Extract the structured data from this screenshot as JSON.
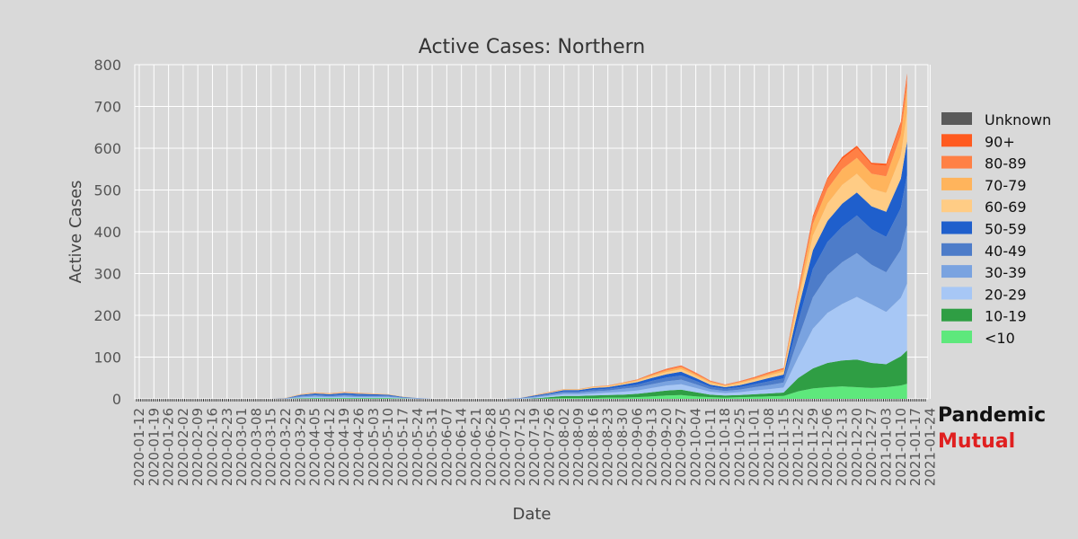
{
  "chart_data": {
    "type": "area",
    "stacked": true,
    "title": "Active Cases: Northern",
    "xlabel": "Date",
    "ylabel": "Active Cases",
    "ylim": [
      0,
      800
    ],
    "yticks": [
      0,
      100,
      200,
      300,
      400,
      500,
      600,
      700,
      800
    ],
    "grid": true,
    "legend_position": "right",
    "x_tick_labels": [
      "2020-01-12",
      "2020-01-19",
      "2020-01-26",
      "2020-02-02",
      "2020-02-09",
      "2020-02-16",
      "2020-02-23",
      "2020-03-01",
      "2020-03-08",
      "2020-03-15",
      "2020-03-22",
      "2020-03-29",
      "2020-04-05",
      "2020-04-12",
      "2020-04-19",
      "2020-04-26",
      "2020-05-03",
      "2020-05-10",
      "2020-05-17",
      "2020-05-24",
      "2020-05-31",
      "2020-06-07",
      "2020-06-14",
      "2020-06-21",
      "2020-06-28",
      "2020-07-05",
      "2020-07-12",
      "2020-07-19",
      "2020-07-26",
      "2020-08-02",
      "2020-08-09",
      "2020-08-16",
      "2020-08-23",
      "2020-08-30",
      "2020-09-06",
      "2020-09-13",
      "2020-09-20",
      "2020-09-27",
      "2020-10-04",
      "2020-10-11",
      "2020-10-18",
      "2020-10-25",
      "2020-11-01",
      "2020-11-08",
      "2020-11-15",
      "2020-11-22",
      "2020-11-29",
      "2020-12-06",
      "2020-12-13",
      "2020-12-20",
      "2020-12-27",
      "2021-01-03",
      "2021-01-10",
      "2021-01-17",
      "2021-01-24"
    ],
    "legend": [
      "Unknown",
      "90+",
      "80-89",
      "70-79",
      "60-69",
      "50-59",
      "40-49",
      "30-39",
      "20-29",
      "10-19",
      "<10"
    ],
    "colors": {
      "Unknown": "#5a5a5a",
      "90+": "#ff5a1f",
      "80-89": "#ff8045",
      "70-79": "#ffb45c",
      "60-69": "#ffcc85",
      "50-59": "#1f5fcc",
      "40-49": "#4d7cc9",
      "30-39": "#7aa3e0",
      "20-29": "#a7c7f5",
      "10-19": "#2f9e44",
      "<10": "#5ee87c"
    },
    "stack_order": [
      "<10",
      "10-19",
      "20-29",
      "30-39",
      "40-49",
      "50-59",
      "60-69",
      "70-79",
      "80-89",
      "90+",
      "Unknown"
    ],
    "weeks": [
      "2020-01-12",
      "2020-01-19",
      "2020-01-26",
      "2020-02-02",
      "2020-02-09",
      "2020-02-16",
      "2020-02-23",
      "2020-03-01",
      "2020-03-08",
      "2020-03-15",
      "2020-03-22",
      "2020-03-29",
      "2020-04-05",
      "2020-04-12",
      "2020-04-19",
      "2020-04-26",
      "2020-05-03",
      "2020-05-10",
      "2020-05-17",
      "2020-05-24",
      "2020-05-31",
      "2020-06-07",
      "2020-06-14",
      "2020-06-21",
      "2020-06-28",
      "2020-07-05",
      "2020-07-12",
      "2020-07-19",
      "2020-07-26",
      "2020-08-02",
      "2020-08-09",
      "2020-08-16",
      "2020-08-23",
      "2020-08-30",
      "2020-09-06",
      "2020-09-13",
      "2020-09-20",
      "2020-09-27",
      "2020-10-04",
      "2020-10-11",
      "2020-10-18",
      "2020-10-25",
      "2020-11-01",
      "2020-11-08",
      "2020-11-15",
      "2020-11-22",
      "2020-11-29",
      "2020-12-06",
      "2020-12-13",
      "2020-12-20",
      "2020-12-27",
      "2021-01-03",
      "2021-01-10",
      "2021-01-13"
    ],
    "series": [
      {
        "name": "<10",
        "values": [
          0,
          0,
          0,
          0,
          0,
          0,
          0,
          0,
          0,
          0,
          0,
          0.5,
          1,
          1,
          1,
          1,
          1,
          1,
          0.5,
          0,
          0,
          0,
          0,
          0,
          0,
          0,
          0,
          0,
          1,
          2,
          2,
          2,
          3,
          3,
          4,
          6,
          8,
          9,
          6,
          4,
          3,
          4,
          5,
          6,
          7,
          18,
          25,
          28,
          30,
          28,
          26,
          28,
          32,
          36
        ]
      },
      {
        "name": "10-19",
        "values": [
          0,
          0,
          0,
          0,
          0,
          0,
          0,
          0,
          0,
          0,
          0,
          1,
          1,
          1,
          1,
          1,
          1,
          1,
          0.5,
          0,
          0,
          0,
          0,
          0,
          0,
          0,
          0,
          1,
          3,
          5,
          5,
          6,
          6,
          7,
          8,
          10,
          12,
          13,
          10,
          6,
          5,
          5,
          6,
          7,
          8,
          32,
          48,
          58,
          62,
          66,
          60,
          55,
          70,
          80
        ]
      },
      {
        "name": "20-29",
        "values": [
          0,
          0,
          0,
          0,
          0,
          0,
          0,
          0,
          0,
          0,
          0.5,
          2,
          3,
          2,
          3,
          2,
          2,
          2,
          1,
          0.5,
          0,
          0,
          0,
          0,
          0,
          0,
          0.5,
          2,
          3,
          4,
          4,
          5,
          6,
          7,
          8,
          10,
          12,
          13,
          10,
          7,
          6,
          7,
          9,
          10,
          12,
          50,
          95,
          120,
          135,
          150,
          140,
          125,
          140,
          160
        ]
      },
      {
        "name": "30-39",
        "values": [
          0,
          0,
          0,
          0,
          0,
          0,
          0,
          0,
          0,
          0,
          0.5,
          2,
          3,
          2,
          3,
          2,
          2,
          2,
          1,
          0.5,
          0,
          0,
          0,
          0,
          0,
          0,
          0.5,
          2,
          3,
          4,
          4,
          5,
          5,
          7,
          8,
          9,
          10,
          11,
          9,
          6,
          5,
          6,
          8,
          10,
          12,
          45,
          75,
          90,
          100,
          105,
          95,
          95,
          115,
          140
        ]
      },
      {
        "name": "40-49",
        "values": [
          0,
          0,
          0,
          0,
          0,
          0,
          0,
          0,
          0,
          0,
          0.5,
          2,
          2,
          2,
          3,
          3,
          2,
          2,
          1,
          0.5,
          0,
          0,
          0,
          0,
          0,
          0,
          0.5,
          1,
          2,
          3,
          3,
          4,
          4,
          5,
          6,
          8,
          9,
          10,
          8,
          6,
          5,
          6,
          7,
          9,
          10,
          40,
          68,
          80,
          85,
          90,
          85,
          85,
          100,
          120
        ]
      },
      {
        "name": "50-59",
        "values": [
          0,
          0,
          0,
          0,
          0,
          0,
          0,
          0,
          0,
          0,
          0.5,
          2,
          3,
          3,
          3,
          3,
          3,
          2,
          1,
          0.5,
          0,
          0,
          0,
          0,
          0,
          0,
          0.5,
          2,
          2,
          3,
          3,
          4,
          4,
          5,
          6,
          7,
          8,
          9,
          7,
          5,
          4,
          5,
          6,
          8,
          9,
          30,
          45,
          50,
          55,
          55,
          55,
          60,
          70,
          80
        ]
      },
      {
        "name": "60-69",
        "values": [
          0,
          0,
          0,
          0,
          0,
          0,
          0,
          0,
          0,
          0,
          0.5,
          1,
          1,
          1,
          1,
          1,
          1,
          1,
          0.5,
          0,
          0,
          0,
          0,
          0,
          0,
          0,
          0,
          0.5,
          1,
          1,
          1,
          2,
          2,
          2,
          3,
          4,
          5,
          6,
          5,
          4,
          3,
          4,
          5,
          6,
          7,
          20,
          35,
          42,
          45,
          45,
          42,
          45,
          55,
          70
        ]
      },
      {
        "name": "70-79",
        "values": [
          0,
          0,
          0,
          0,
          0,
          0,
          0,
          0,
          0,
          0,
          0,
          0.5,
          1,
          1,
          1,
          1,
          0.5,
          0.5,
          0,
          0,
          0,
          0,
          0,
          0,
          0,
          0,
          0,
          0.5,
          1,
          1,
          1,
          1,
          1,
          2,
          2,
          3,
          4,
          5,
          4,
          3,
          2,
          3,
          3,
          4,
          5,
          15,
          28,
          35,
          38,
          38,
          36,
          40,
          50,
          60
        ]
      },
      {
        "name": "80-89",
        "values": [
          0,
          0,
          0,
          0,
          0,
          0,
          0,
          0,
          0,
          0,
          0,
          0.5,
          0.5,
          0.5,
          0.5,
          0.5,
          0.5,
          0,
          0,
          0,
          0,
          0,
          0,
          0,
          0,
          0,
          0,
          0.5,
          0.5,
          0.5,
          0.5,
          0.5,
          1,
          1,
          1,
          2,
          3,
          3,
          3,
          2,
          1,
          2,
          2,
          3,
          3,
          8,
          15,
          22,
          24,
          24,
          22,
          25,
          25,
          25
        ]
      },
      {
        "name": "90+",
        "values": [
          0,
          0,
          0,
          0,
          0,
          0,
          0,
          0,
          0,
          0,
          0,
          0,
          0,
          0,
          0,
          0,
          0,
          0,
          0,
          0,
          0,
          0,
          0,
          0,
          0,
          0,
          0,
          0,
          0,
          0,
          0,
          0,
          0,
          0,
          0.5,
          1,
          1,
          1,
          1,
          0.5,
          0.5,
          0.5,
          1,
          1,
          1,
          3,
          4,
          4,
          5,
          5,
          4,
          5,
          6,
          8
        ]
      },
      {
        "name": "Unknown",
        "values": [
          0,
          0,
          0,
          0,
          0,
          0,
          0,
          0,
          0,
          0,
          0,
          0,
          0,
          0,
          0,
          0,
          0,
          0,
          0,
          0,
          0,
          0,
          0,
          0,
          0,
          0,
          0,
          0,
          0,
          0,
          0,
          0,
          0,
          0,
          0,
          0,
          0,
          0,
          0,
          0,
          0,
          0,
          0,
          0,
          0,
          0,
          0,
          0,
          0,
          0,
          0,
          0,
          0,
          0
        ]
      }
    ]
  },
  "branding": {
    "line1": "Pandemic",
    "line2": "Mutual",
    "line2_color": "#e02020"
  }
}
